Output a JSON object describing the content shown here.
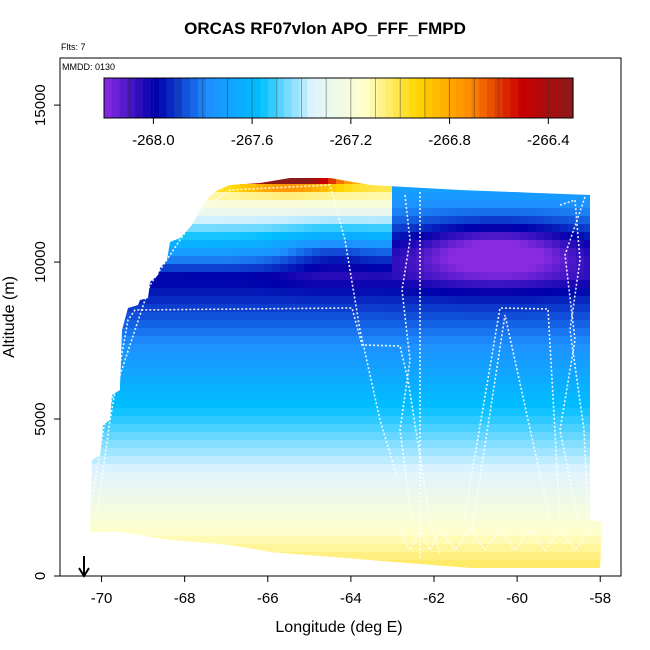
{
  "chart_data": {
    "type": "heatmap",
    "title": "ORCAS RF07vlon APO_FFF_FMPD",
    "flights_label": "Flts: 7",
    "date_label": "MMDD: 0130",
    "xlabel": "Longitude (deg E)",
    "ylabel": "Altitude (m)",
    "xlim": [
      -71.0,
      -57.5
    ],
    "ylim": [
      0,
      16500
    ],
    "xticks": [
      -70,
      -68,
      -66,
      -64,
      -62,
      -60,
      -58
    ],
    "xtick_labels": [
      "-70",
      "-68",
      "-66",
      "-64",
      "-62",
      "-60",
      "-58"
    ],
    "yticks": [
      0,
      5000,
      10000,
      15000
    ],
    "ytick_labels": [
      "0",
      "5000",
      "10000",
      "15000"
    ],
    "colorbar": {
      "range": [
        -268.2,
        -266.3
      ],
      "ticks": [
        -268.0,
        -267.6,
        -267.2,
        -266.8,
        -266.4
      ],
      "tick_labels": [
        "-268.0",
        "-267.6",
        "-267.2",
        "-266.8",
        "-266.4"
      ],
      "colors": [
        "#8a2be2",
        "#0000aa",
        "#1e90ff",
        "#00bfff",
        "#e0f4ff",
        "#ffffcc",
        "#ffd700",
        "#ff8c00",
        "#cc0000",
        "#8b1a1a"
      ]
    },
    "field_summary": {
      "max_region": {
        "lon": [
          -67.5,
          -64.0
        ],
        "alt": [
          12500,
          13000
        ],
        "value": -266.4
      },
      "min_region": {
        "lon": [
          -62.5,
          -58.5
        ],
        "alt": [
          9500,
          11000
        ],
        "value": -268.1
      },
      "surface_values": -267.0
    },
    "flight_track_note": "white dotted flight track lines",
    "arrow_marker_lon": -70.9
  }
}
